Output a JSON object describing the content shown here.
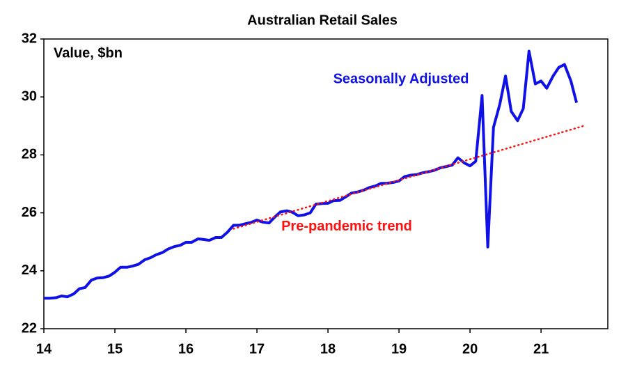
{
  "chart_data": {
    "type": "line",
    "title": "Australian Retail Sales",
    "ylabel": "Value, $bn",
    "xlim": [
      14,
      21.94
    ],
    "xticks": [
      14,
      15,
      16,
      17,
      18,
      19,
      20,
      21
    ],
    "ylim": [
      22,
      32
    ],
    "yticks": [
      22,
      24,
      26,
      28,
      30,
      32
    ],
    "grid": false,
    "series": [
      {
        "name": "Seasonally Adjusted",
        "color": "#1010e8",
        "style": "solid",
        "x": [
          14.0,
          14.08,
          14.17,
          14.25,
          14.33,
          14.42,
          14.5,
          14.58,
          14.67,
          14.75,
          14.83,
          14.92,
          15.0,
          15.08,
          15.17,
          15.25,
          15.33,
          15.42,
          15.5,
          15.58,
          15.67,
          15.75,
          15.83,
          15.92,
          16.0,
          16.08,
          16.17,
          16.25,
          16.33,
          16.42,
          16.5,
          16.58,
          16.67,
          16.75,
          16.83,
          16.92,
          17.0,
          17.08,
          17.17,
          17.25,
          17.33,
          17.42,
          17.5,
          17.58,
          17.67,
          17.75,
          17.83,
          17.92,
          18.0,
          18.08,
          18.17,
          18.25,
          18.33,
          18.42,
          18.5,
          18.58,
          18.67,
          18.75,
          18.83,
          18.92,
          19.0,
          19.08,
          19.17,
          19.25,
          19.33,
          19.42,
          19.5,
          19.58,
          19.67,
          19.75,
          19.83,
          19.92,
          20.0,
          20.08,
          20.17,
          20.25,
          20.33,
          20.42,
          20.5,
          20.58,
          20.67,
          20.75,
          20.83,
          20.92,
          21.0,
          21.08,
          21.17,
          21.25,
          21.33,
          21.42,
          21.5
        ],
        "values": [
          23.05,
          23.05,
          23.07,
          23.13,
          23.1,
          23.2,
          23.38,
          23.42,
          23.68,
          23.75,
          23.76,
          23.82,
          23.95,
          24.12,
          24.12,
          24.16,
          24.22,
          24.38,
          24.45,
          24.55,
          24.63,
          24.75,
          24.83,
          24.88,
          24.98,
          24.98,
          25.1,
          25.08,
          25.05,
          25.15,
          25.15,
          25.32,
          25.57,
          25.57,
          25.62,
          25.67,
          25.75,
          25.68,
          25.65,
          25.85,
          26.03,
          26.07,
          26.02,
          25.9,
          25.93,
          26.0,
          26.3,
          26.32,
          26.33,
          26.42,
          26.43,
          26.55,
          26.68,
          26.72,
          26.78,
          26.87,
          26.93,
          27.02,
          27.02,
          27.05,
          27.1,
          27.25,
          27.3,
          27.32,
          27.38,
          27.42,
          27.47,
          27.55,
          27.6,
          27.65,
          27.9,
          27.72,
          27.62,
          27.78,
          30.05,
          24.82,
          28.95,
          29.75,
          30.72,
          29.5,
          29.18,
          29.6,
          31.58,
          30.45,
          30.55,
          30.3,
          30.72,
          31.02,
          31.12,
          30.55,
          29.8
        ]
      },
      {
        "name": "Pre-pandemic trend",
        "color": "#ff1010",
        "style": "dotted",
        "x": [
          16.67,
          21.6
        ],
        "values": [
          25.45,
          29.0
        ]
      }
    ]
  }
}
